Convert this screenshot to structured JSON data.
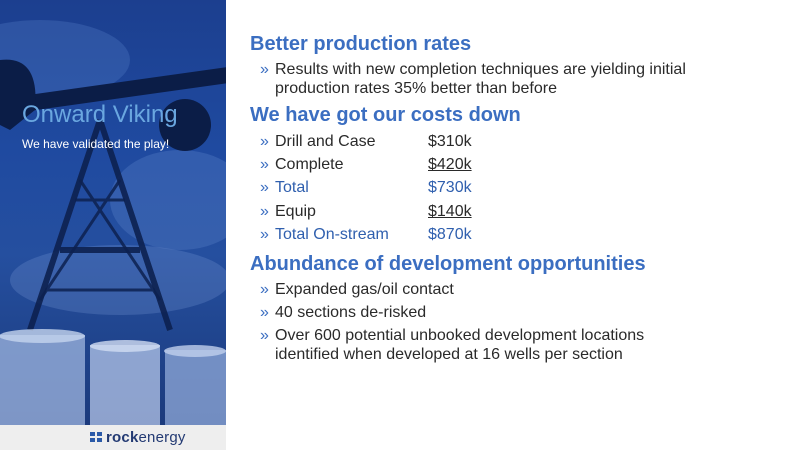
{
  "sidebar": {
    "title": "Onward Viking",
    "subtitle": "We have validated the play!",
    "logo": {
      "bold": "rock",
      "light": "energy"
    },
    "colors": {
      "panel": "#1f4aa0",
      "title": "#6aa7e0"
    }
  },
  "sections": [
    {
      "heading": "Better production rates",
      "bullets": [
        {
          "line1": "Results with new completion techniques are yielding initial",
          "line2": "production rates 35% better than before"
        }
      ]
    },
    {
      "heading": "We have got our costs down",
      "costs": [
        {
          "label": "Drill and Case",
          "value": "$310k"
        },
        {
          "label": "Complete",
          "value": "$420k"
        },
        {
          "label": "Total",
          "value": "$730k"
        },
        {
          "label": "Equip",
          "value": "$140k"
        },
        {
          "label": "Total On-stream",
          "value": "$870k"
        }
      ]
    },
    {
      "heading": "Abundance of development opportunities",
      "bullets": [
        {
          "line1": "Expanded gas/oil contact"
        },
        {
          "line1": "40 sections de-risked"
        },
        {
          "line1": "Over 600 potential unbooked development locations",
          "line2": "identified when developed at 16 wells per section"
        }
      ]
    }
  ],
  "bullet_char": "»",
  "colors": {
    "heading": "#3b6ec1",
    "body": "#2a2a2a"
  }
}
